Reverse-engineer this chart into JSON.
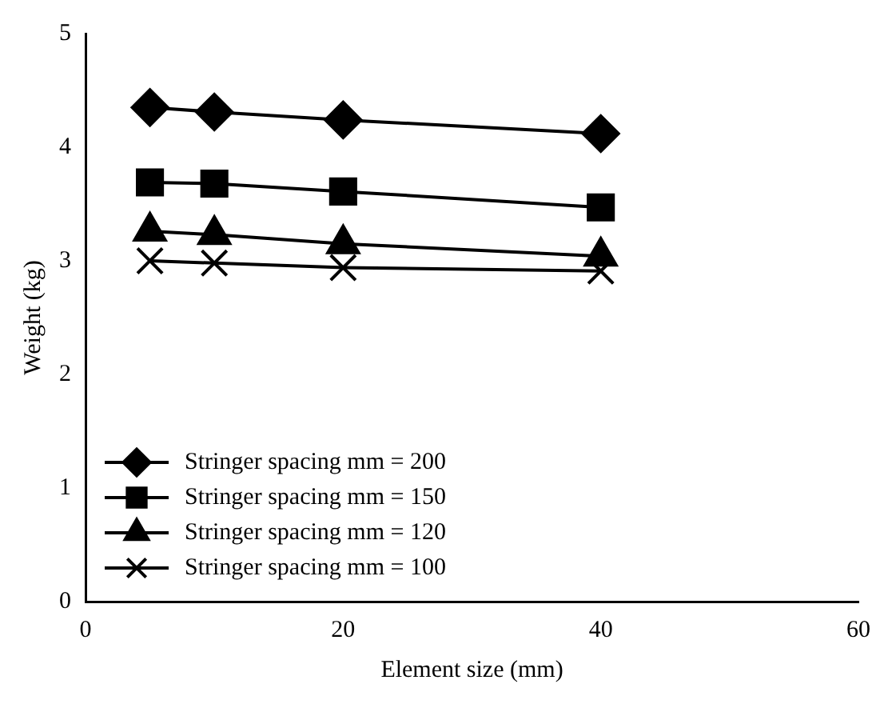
{
  "chart_data": {
    "type": "line",
    "xlabel": "Element size (mm)",
    "ylabel": "Weight (kg)",
    "x": [
      5,
      10,
      20,
      40
    ],
    "series": [
      {
        "name": "Stringer spacing mm = 200",
        "color": "#000000",
        "marker": "diamond",
        "values": [
          4.35,
          4.31,
          4.24,
          4.12
        ]
      },
      {
        "name": "Stringer spacing mm = 150",
        "color": "#000000",
        "marker": "square",
        "values": [
          3.69,
          3.68,
          3.61,
          3.47
        ]
      },
      {
        "name": "Stringer spacing mm = 120",
        "color": "#000000",
        "marker": "triangle",
        "values": [
          3.26,
          3.23,
          3.15,
          3.04
        ]
      },
      {
        "name": "Stringer spacing mm = 100",
        "color": "#000000",
        "marker": "cross",
        "values": [
          3.0,
          2.98,
          2.94,
          2.91
        ]
      }
    ],
    "xlim": [
      0,
      60
    ],
    "xticks": [
      0,
      20,
      40,
      60
    ],
    "ylim": [
      0,
      5
    ],
    "yticks": [
      0,
      1,
      2,
      3,
      4,
      5
    ],
    "grid": false,
    "legend": "bottom left"
  }
}
